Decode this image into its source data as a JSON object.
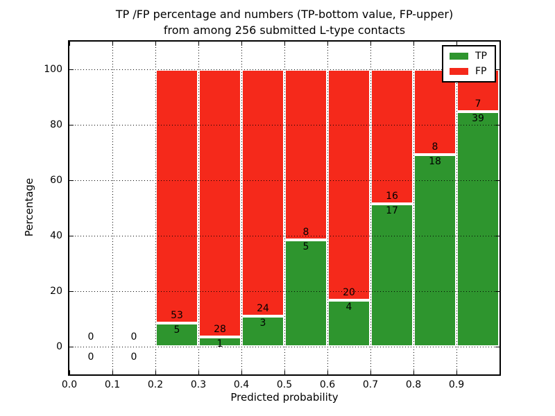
{
  "figure": {
    "title_line1": "TP /FP percentage and numbers (TP-bottom value, FP-upper)",
    "title_line2": "from among 256 submitted L-type contacts",
    "xlabel": "Predicted probability",
    "ylabel": "Percentage"
  },
  "legend": {
    "position": "upper right",
    "items": [
      {
        "label": "TP",
        "color": "#2e952e"
      },
      {
        "label": "FP",
        "color": "#f5291b"
      }
    ]
  },
  "chart_data": {
    "type": "bar",
    "stacked": true,
    "normalized_to_percent": true,
    "title": "TP /FP percentage and numbers (TP-bottom value, FP-upper) from among 256 submitted L-type contacts",
    "xlabel": "Predicted probability",
    "ylabel": "Percentage",
    "xlim": [
      0.0,
      1.0
    ],
    "ylim": [
      -10,
      110
    ],
    "xticks": [
      "0.0",
      "0.1",
      "0.2",
      "0.3",
      "0.4",
      "0.5",
      "0.6",
      "0.7",
      "0.8",
      "0.9"
    ],
    "yticks": [
      0,
      20,
      40,
      60,
      80,
      100
    ],
    "grid": "dotted, drawn above bars",
    "bar_edge_color": "#ffffff",
    "bin_edges": [
      0.0,
      0.1,
      0.2,
      0.3,
      0.4,
      0.5,
      0.6,
      0.7,
      0.8,
      0.9,
      1.0
    ],
    "series": [
      {
        "name": "TP",
        "color": "#2e952e",
        "counts": [
          0,
          0,
          5,
          1,
          3,
          5,
          4,
          17,
          18,
          39
        ]
      },
      {
        "name": "FP",
        "color": "#f5291b",
        "counts": [
          0,
          0,
          53,
          28,
          24,
          8,
          20,
          16,
          8,
          7
        ]
      }
    ],
    "tp_percent_per_bin": [
      null,
      null,
      8.6,
      3.4,
      11.1,
      38.5,
      16.7,
      51.5,
      69.2,
      84.8
    ],
    "total_submitted": 256
  }
}
